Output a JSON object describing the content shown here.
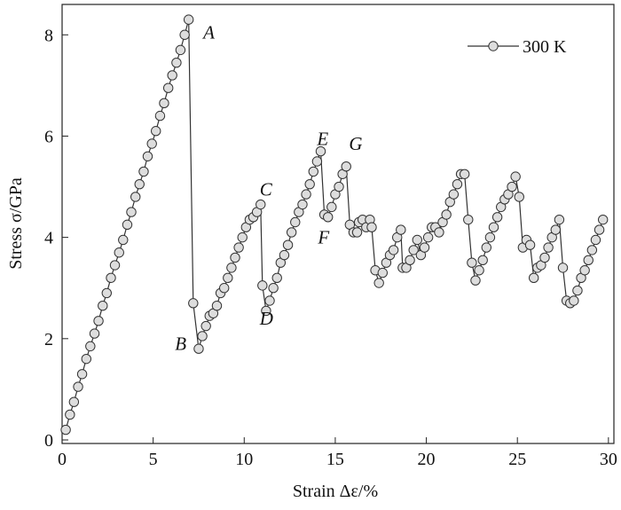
{
  "chart_data": {
    "type": "line",
    "x_label": "Strain Δε/%",
    "y_label": "Stress σ/GPa",
    "xlim": [
      0,
      30.3
    ],
    "ylim": [
      -0.07,
      8.6
    ],
    "xticks": [
      0,
      5,
      10,
      15,
      20,
      25,
      30
    ],
    "yticks": [
      0,
      2,
      4,
      6,
      8
    ],
    "legend": "upper right",
    "annotations": [
      "A",
      "B",
      "C",
      "D",
      "E",
      "F",
      "G"
    ],
    "series": [
      {
        "name": "300 K",
        "color": "#333333",
        "marker_fill": "#dddddd",
        "x": [
          0.2,
          0.43,
          0.65,
          0.88,
          1.1,
          1.33,
          1.55,
          1.78,
          2.0,
          2.23,
          2.45,
          2.68,
          2.9,
          3.13,
          3.35,
          3.58,
          3.8,
          4.03,
          4.25,
          4.48,
          4.7,
          4.93,
          5.15,
          5.38,
          5.6,
          5.83,
          6.05,
          6.28,
          6.5,
          6.73,
          6.95,
          7.2,
          7.5,
          7.7,
          7.9,
          8.1,
          8.3,
          8.5,
          8.7,
          8.9,
          9.1,
          9.3,
          9.5,
          9.7,
          9.9,
          10.1,
          10.3,
          10.5,
          10.7,
          10.9,
          11.0,
          11.2,
          11.4,
          11.6,
          11.8,
          12.0,
          12.2,
          12.4,
          12.6,
          12.8,
          13.0,
          13.2,
          13.4,
          13.6,
          13.8,
          14.0,
          14.2,
          14.4,
          14.6,
          14.8,
          15.0,
          15.2,
          15.4,
          15.6,
          15.8,
          16.0,
          16.2,
          16.3,
          16.5,
          16.7,
          16.9,
          17.0,
          17.2,
          17.4,
          17.6,
          17.8,
          18.0,
          18.2,
          18.4,
          18.6,
          18.7,
          18.9,
          19.1,
          19.3,
          19.5,
          19.7,
          19.9,
          20.1,
          20.3,
          20.5,
          20.7,
          20.9,
          21.1,
          21.3,
          21.5,
          21.7,
          21.9,
          22.1,
          22.3,
          22.5,
          22.7,
          22.9,
          23.1,
          23.3,
          23.5,
          23.7,
          23.9,
          24.1,
          24.3,
          24.5,
          24.7,
          24.9,
          25.1,
          25.3,
          25.5,
          25.7,
          25.9,
          26.1,
          26.3,
          26.5,
          26.7,
          26.9,
          27.1,
          27.3,
          27.5,
          27.7,
          27.9,
          28.1,
          28.3,
          28.5,
          28.7,
          28.9,
          29.1,
          29.3,
          29.5,
          29.7
        ],
        "values": [
          0.2,
          0.5,
          0.75,
          1.05,
          1.3,
          1.6,
          1.85,
          2.1,
          2.35,
          2.65,
          2.9,
          3.2,
          3.45,
          3.7,
          3.95,
          4.25,
          4.5,
          4.8,
          5.05,
          5.3,
          5.6,
          5.85,
          6.1,
          6.4,
          6.65,
          6.95,
          7.2,
          7.45,
          7.7,
          8.0,
          8.3,
          2.7,
          1.8,
          2.05,
          2.25,
          2.45,
          2.5,
          2.65,
          2.9,
          3.0,
          3.2,
          3.4,
          3.6,
          3.8,
          4.0,
          4.2,
          4.35,
          4.4,
          4.5,
          4.65,
          3.05,
          2.55,
          2.75,
          3.0,
          3.2,
          3.5,
          3.65,
          3.85,
          4.1,
          4.3,
          4.5,
          4.65,
          4.85,
          5.05,
          5.3,
          5.5,
          5.7,
          4.45,
          4.4,
          4.6,
          4.85,
          5.0,
          5.25,
          5.4,
          4.25,
          4.1,
          4.1,
          4.3,
          4.35,
          4.2,
          4.35,
          4.2,
          3.35,
          3.1,
          3.3,
          3.5,
          3.65,
          3.75,
          4.0,
          4.15,
          3.4,
          3.4,
          3.55,
          3.75,
          3.95,
          3.65,
          3.8,
          4.0,
          4.2,
          4.2,
          4.1,
          4.3,
          4.45,
          4.7,
          4.85,
          5.05,
          5.25,
          5.25,
          4.35,
          3.5,
          3.15,
          3.35,
          3.55,
          3.8,
          4.0,
          4.2,
          4.4,
          4.6,
          4.75,
          4.85,
          5.0,
          5.2,
          4.8,
          3.8,
          3.95,
          3.85,
          3.2,
          3.4,
          3.45,
          3.6,
          3.8,
          4.0,
          4.15,
          4.35,
          3.4,
          2.75,
          2.7,
          2.75,
          2.95,
          3.2,
          3.35,
          3.55,
          3.75,
          3.95,
          4.15,
          4.35
        ]
      }
    ]
  }
}
